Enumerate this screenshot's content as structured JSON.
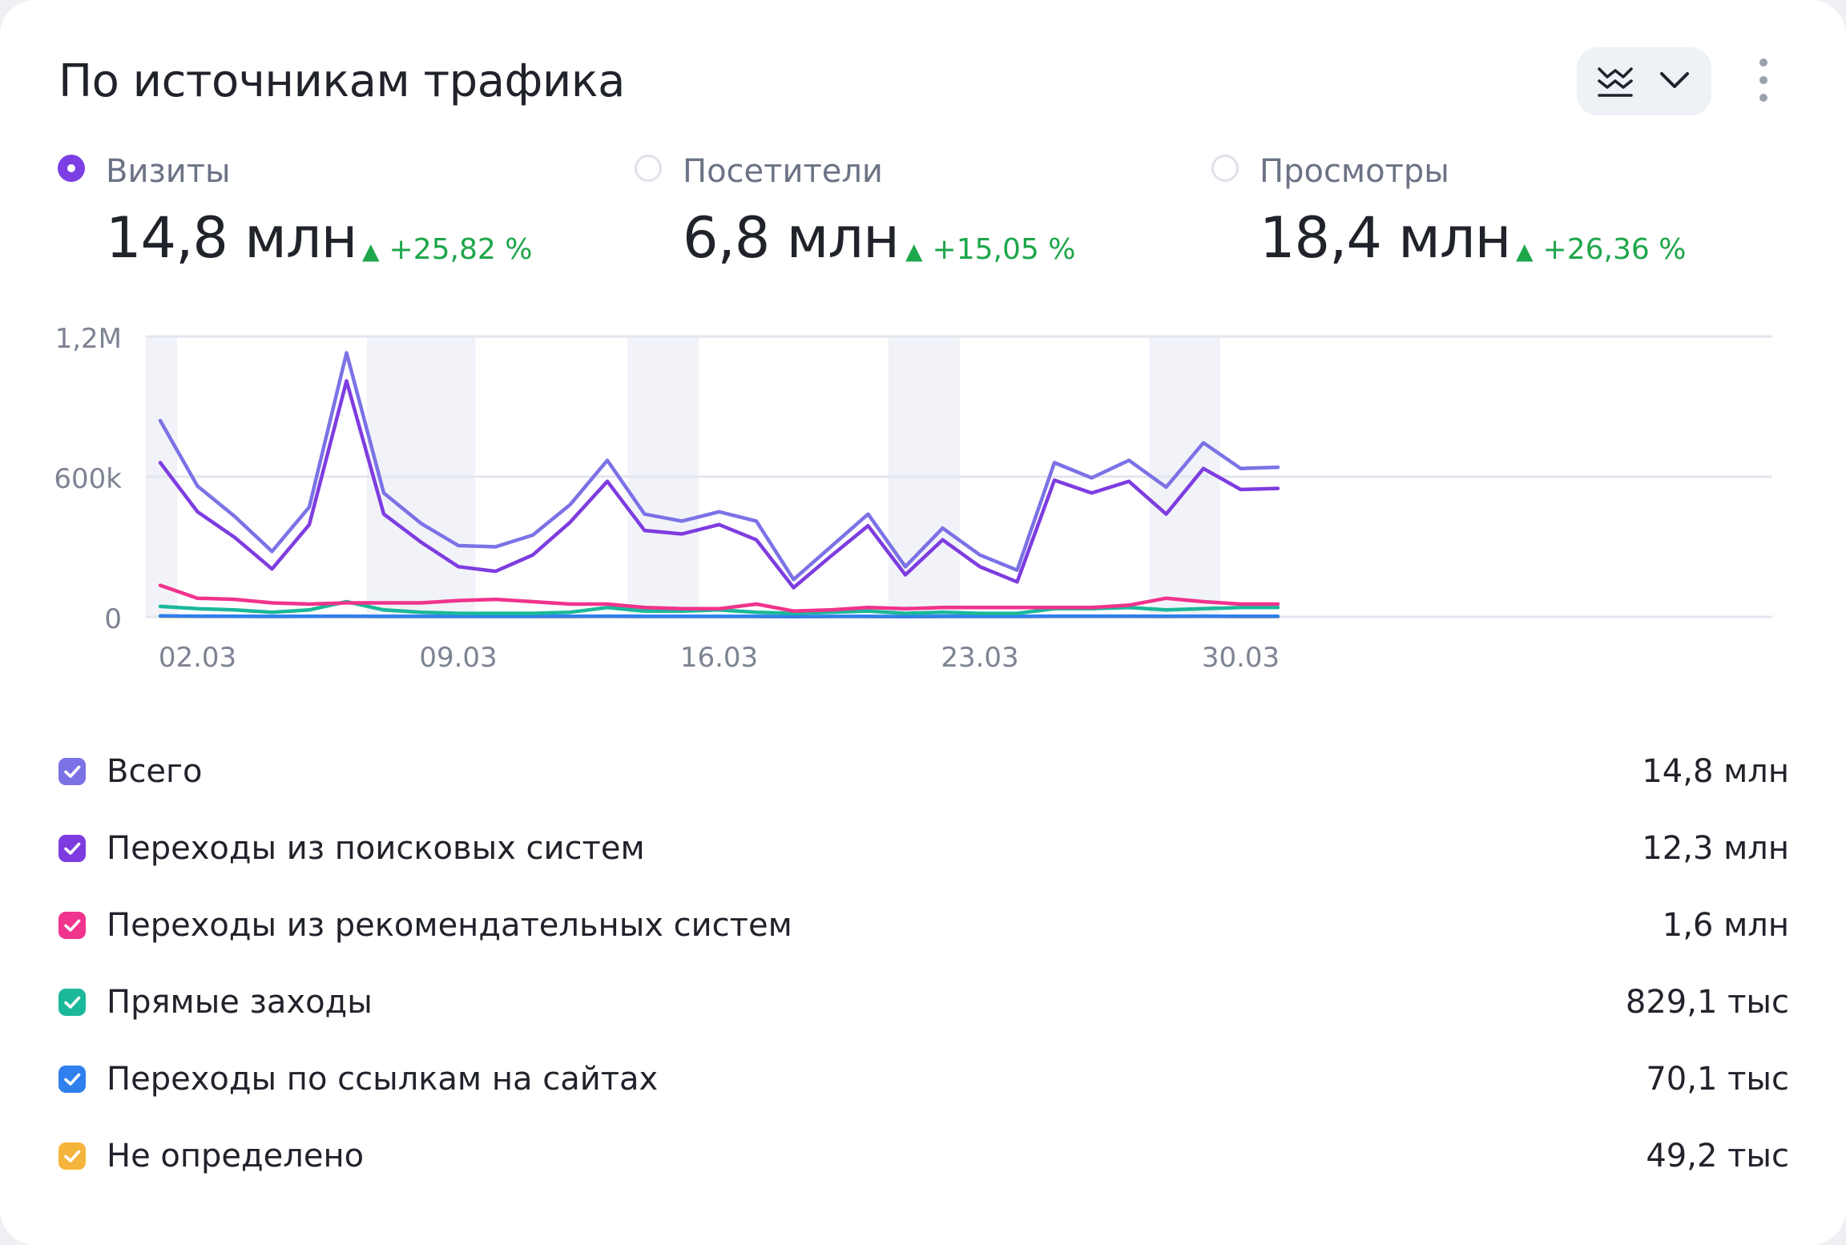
{
  "widget": {
    "title": "По источникам трафика",
    "icons": [
      "stacked-lines-icon",
      "chevron-down-icon",
      "more-vertical-icon"
    ]
  },
  "metrics": [
    {
      "label": "Визиты",
      "value": "14,8 млн",
      "delta": "+25,82 %",
      "selected": true
    },
    {
      "label": "Посетители",
      "value": "6,8 млн",
      "delta": "+15,05 %",
      "selected": false
    },
    {
      "label": "Просмотры",
      "value": "18,4 млн",
      "delta": "+26,36 %",
      "selected": false
    }
  ],
  "colors": {
    "selected_radio": "#7b3fe4",
    "delta_up": "#1ea64a",
    "weekend_band": "#f1f3f8",
    "grid": "#e3e6ee"
  },
  "chart_data": {
    "type": "line",
    "title": "",
    "xlabel": "",
    "ylabel": "",
    "ylim": [
      0,
      1200000
    ],
    "yticks": [
      {
        "value": 0,
        "label": "0"
      },
      {
        "value": 600000,
        "label": "600k"
      },
      {
        "value": 1200000,
        "label": "1,2M"
      }
    ],
    "x": [
      "01.03",
      "02.03",
      "03.03",
      "04.03",
      "05.03",
      "06.03",
      "07.03",
      "08.03",
      "09.03",
      "10.03",
      "11.03",
      "12.03",
      "13.03",
      "14.03",
      "15.03",
      "16.03",
      "17.03",
      "18.03",
      "19.03",
      "20.03",
      "21.03",
      "22.03",
      "23.03",
      "24.03",
      "25.03",
      "26.03",
      "27.03",
      "28.03",
      "29.03",
      "30.03",
      "31.03"
    ],
    "xtick_labels": [
      "02.03",
      "09.03",
      "16.03",
      "23.03",
      "30.03"
    ],
    "weekend_bands": [
      [
        "01.03",
        "01.03"
      ],
      [
        "07.03",
        "09.03"
      ],
      [
        "14.03",
        "15.03"
      ],
      [
        "21.03",
        "22.03"
      ],
      [
        "28.03",
        "29.03"
      ]
    ],
    "grid": true,
    "legend_position": "bottom",
    "series": [
      {
        "name": "Всего",
        "color": "#7b72e6",
        "total": "14,8 млн",
        "values": [
          840000,
          560000,
          430000,
          280000,
          470000,
          1130000,
          530000,
          400000,
          305000,
          300000,
          350000,
          480000,
          670000,
          440000,
          410000,
          450000,
          410000,
          160000,
          300000,
          440000,
          215000,
          380000,
          265000,
          200000,
          660000,
          595000,
          670000,
          555000,
          745000,
          635000,
          640000
        ]
      },
      {
        "name": "Переходы из поисковых систем",
        "color": "#7e3ce0",
        "total": "12,3 млн",
        "values": [
          660000,
          450000,
          340000,
          205000,
          395000,
          1010000,
          440000,
          320000,
          215000,
          195000,
          265000,
          405000,
          580000,
          370000,
          355000,
          395000,
          330000,
          125000,
          260000,
          390000,
          180000,
          330000,
          215000,
          150000,
          585000,
          530000,
          580000,
          440000,
          635000,
          545000,
          550000
        ]
      },
      {
        "name": "Переходы из рекомендательных систем",
        "color": "#f0338c",
        "total": "1,6 млн",
        "values": [
          135000,
          80000,
          75000,
          60000,
          55000,
          60000,
          60000,
          60000,
          70000,
          75000,
          65000,
          55000,
          55000,
          40000,
          35000,
          35000,
          55000,
          25000,
          30000,
          40000,
          35000,
          40000,
          40000,
          40000,
          40000,
          40000,
          50000,
          80000,
          65000,
          55000,
          55000
        ]
      },
      {
        "name": "Прямые заходы",
        "color": "#1bb89a",
        "total": "829,1 тыс",
        "values": [
          45000,
          35000,
          30000,
          20000,
          30000,
          65000,
          30000,
          20000,
          15000,
          15000,
          15000,
          20000,
          40000,
          25000,
          25000,
          30000,
          20000,
          15000,
          20000,
          25000,
          15000,
          20000,
          15000,
          15000,
          35000,
          35000,
          40000,
          30000,
          35000,
          40000,
          40000
        ]
      },
      {
        "name": "Переходы по ссылкам на сайтах",
        "color": "#2f80ed",
        "total": "70,1 тыс",
        "values": [
          4000,
          3000,
          2500,
          2000,
          2500,
          3000,
          2000,
          2000,
          2000,
          2000,
          2000,
          2500,
          3000,
          2000,
          2000,
          2000,
          2000,
          1500,
          2000,
          2000,
          1500,
          2000,
          2000,
          2000,
          3000,
          3000,
          3000,
          2500,
          3000,
          2500,
          2500
        ]
      },
      {
        "name": "Не определено",
        "color": "#f5b53c",
        "total": "49,2 тыс",
        "values": [
          2500,
          2000,
          2000,
          1500,
          2000,
          2000,
          1500,
          1500,
          1500,
          1500,
          1500,
          1500,
          2000,
          1500,
          1500,
          1500,
          1500,
          1000,
          1500,
          1500,
          1000,
          1500,
          1500,
          1500,
          2000,
          2000,
          2000,
          1500,
          2000,
          1500,
          1500
        ]
      }
    ]
  }
}
